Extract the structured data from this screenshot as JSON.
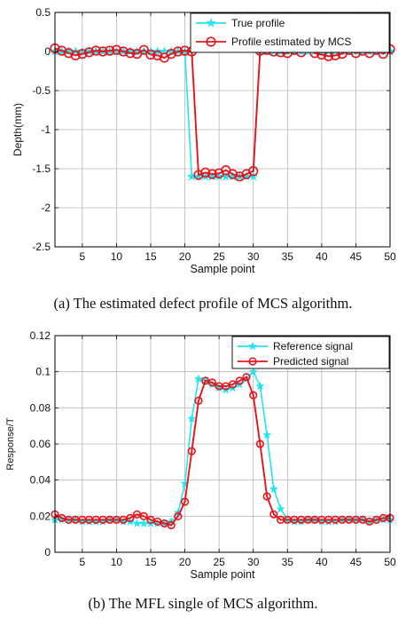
{
  "colors": {
    "true_series": "#22e5f0",
    "estimated_series": "#e8141b",
    "grid": "#b8b8b8",
    "axis": "#000000"
  },
  "captions": {
    "a": "(a) The estimated defect profile of MCS algorithm.",
    "b": "(b) The MFL single of MCS algorithm."
  },
  "chart_data": [
    {
      "type": "line",
      "xlabel": "Sample point",
      "ylabel": "Depth(mm)",
      "xlim": [
        1,
        50
      ],
      "ylim": [
        -2.5,
        0.5
      ],
      "xticks": [
        5,
        10,
        15,
        20,
        25,
        30,
        35,
        40,
        45,
        50
      ],
      "yticks": [
        0.5,
        0,
        -0.5,
        -1,
        -1.5,
        -2,
        -2.5
      ],
      "ytick_labels": [
        "0.5",
        "0",
        "-0.5",
        "-1",
        "-1.5",
        "-2",
        "-2.5"
      ],
      "grid": true,
      "legend_position": "top-right",
      "x": [
        1,
        2,
        3,
        4,
        5,
        6,
        7,
        8,
        9,
        10,
        11,
        12,
        13,
        14,
        15,
        16,
        17,
        18,
        19,
        20,
        21,
        22,
        23,
        24,
        25,
        26,
        27,
        28,
        29,
        30,
        31,
        32,
        33,
        34,
        35,
        36,
        37,
        38,
        39,
        40,
        41,
        42,
        43,
        44,
        45,
        46,
        47,
        48,
        49,
        50
      ],
      "series": [
        {
          "name": "True profile",
          "color": "#22e5f0",
          "marker": "star",
          "values": [
            0,
            0,
            0,
            0,
            0,
            0,
            0,
            0,
            0,
            0,
            0,
            0,
            0,
            0,
            0,
            0,
            0,
            0,
            0,
            0,
            -1.6,
            -1.6,
            -1.6,
            -1.6,
            -1.6,
            -1.6,
            -1.6,
            -1.6,
            -1.6,
            -1.6,
            0,
            0,
            0,
            0,
            0,
            0,
            0,
            0,
            0,
            0,
            0,
            0,
            0,
            0,
            0,
            0,
            0,
            0,
            0,
            0
          ]
        },
        {
          "name": "Profile estimated by MCS",
          "color": "#e8141b",
          "marker": "circle",
          "values": [
            0.04,
            0.01,
            -0.02,
            -0.05,
            -0.03,
            -0.01,
            0.01,
            0,
            0.01,
            0.02,
            0,
            -0.02,
            -0.03,
            0.02,
            -0.04,
            -0.05,
            -0.08,
            -0.03,
            0,
            0.01,
            0,
            -1.58,
            -1.55,
            -1.57,
            -1.56,
            -1.52,
            -1.57,
            -1.6,
            -1.57,
            -1.53,
            0.01,
            0.02,
            0,
            -0.01,
            -0.02,
            0.02,
            -0.01,
            0.05,
            -0.02,
            -0.04,
            -0.06,
            -0.05,
            -0.03,
            0.02,
            -0.02,
            0.01,
            -0.02,
            0.02,
            -0.03,
            0.03
          ]
        }
      ]
    },
    {
      "type": "line",
      "xlabel": "Sample point",
      "ylabel": "Response/T",
      "xlim": [
        1,
        50
      ],
      "ylim": [
        0,
        0.12
      ],
      "xticks": [
        5,
        10,
        15,
        20,
        25,
        30,
        35,
        40,
        45,
        50
      ],
      "yticks": [
        0,
        0.02,
        0.04,
        0.06,
        0.08,
        0.1,
        0.12
      ],
      "ytick_labels": [
        "0",
        "0.02",
        "0.04",
        "0.06",
        "0.08",
        "0.1",
        "0.12"
      ],
      "grid": true,
      "legend_position": "top-right",
      "x": [
        1,
        2,
        3,
        4,
        5,
        6,
        7,
        8,
        9,
        10,
        11,
        12,
        13,
        14,
        15,
        16,
        17,
        18,
        19,
        20,
        21,
        22,
        23,
        24,
        25,
        26,
        27,
        28,
        29,
        30,
        31,
        32,
        33,
        34,
        35,
        36,
        37,
        38,
        39,
        40,
        41,
        42,
        43,
        44,
        45,
        46,
        47,
        48,
        49,
        50
      ],
      "series": [
        {
          "name": "Reference signal",
          "color": "#22e5f0",
          "marker": "star",
          "values": [
            0.018,
            0.018,
            0.018,
            0.018,
            0.017,
            0.017,
            0.017,
            0.017,
            0.018,
            0.018,
            0.017,
            0.017,
            0.016,
            0.016,
            0.016,
            0.016,
            0.016,
            0.017,
            0.022,
            0.038,
            0.074,
            0.096,
            0.095,
            0.093,
            0.091,
            0.09,
            0.091,
            0.093,
            0.096,
            0.1,
            0.092,
            0.065,
            0.035,
            0.024,
            0.018,
            0.017,
            0.017,
            0.018,
            0.018,
            0.017,
            0.017,
            0.017,
            0.018,
            0.018,
            0.018,
            0.018,
            0.017,
            0.018,
            0.018,
            0.018
          ]
        },
        {
          "name": "Predicted signal",
          "color": "#e8141b",
          "marker": "circle",
          "values": [
            0.021,
            0.019,
            0.018,
            0.018,
            0.018,
            0.018,
            0.018,
            0.018,
            0.018,
            0.018,
            0.018,
            0.019,
            0.021,
            0.02,
            0.018,
            0.017,
            0.016,
            0.015,
            0.02,
            0.028,
            0.056,
            0.084,
            0.095,
            0.094,
            0.092,
            0.092,
            0.093,
            0.095,
            0.097,
            0.087,
            0.06,
            0.031,
            0.021,
            0.018,
            0.018,
            0.018,
            0.018,
            0.018,
            0.018,
            0.018,
            0.018,
            0.018,
            0.018,
            0.018,
            0.018,
            0.018,
            0.017,
            0.018,
            0.019,
            0.019
          ]
        }
      ]
    }
  ]
}
